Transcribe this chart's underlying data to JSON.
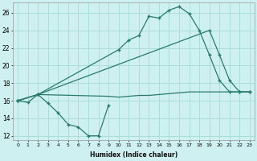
{
  "background_color": "#cff0f0",
  "grid_color": "#aadddd",
  "line_color": "#2a7a6a",
  "xlabel": "Humidex (Indice chaleur)",
  "xlim": [
    -0.5,
    23.5
  ],
  "ylim": [
    11.5,
    27.2
  ],
  "yticks": [
    12,
    14,
    16,
    18,
    20,
    22,
    24,
    26
  ],
  "xticks": [
    0,
    1,
    2,
    3,
    4,
    5,
    6,
    7,
    8,
    9,
    10,
    11,
    12,
    13,
    14,
    15,
    16,
    17,
    18,
    19,
    20,
    21,
    22,
    23
  ],
  "line_zigzag": {
    "x": [
      0,
      1,
      2,
      3,
      4,
      5,
      6,
      7,
      8,
      9
    ],
    "y": [
      16.0,
      15.8,
      16.7,
      15.7,
      14.6,
      13.3,
      13.0,
      12.0,
      12.0,
      15.5
    ]
  },
  "line_top": {
    "x": [
      0,
      2,
      10,
      11,
      12,
      13,
      14,
      15,
      16,
      17,
      18,
      19,
      20,
      21,
      22,
      23
    ],
    "y": [
      16.0,
      16.7,
      21.8,
      22.9,
      23.4,
      25.6,
      25.4,
      26.3,
      26.7,
      25.9,
      24.0,
      21.2,
      18.3,
      17.0,
      17.0,
      17.0
    ]
  },
  "line_mid": {
    "x": [
      0,
      2,
      19,
      20,
      21,
      22,
      23
    ],
    "y": [
      16.0,
      16.7,
      24.0,
      21.2,
      18.3,
      17.0,
      17.0
    ]
  },
  "line_flat": {
    "x": [
      0,
      2,
      9,
      10,
      11,
      12,
      13,
      14,
      15,
      16,
      17,
      18,
      19,
      20,
      21,
      22,
      23
    ],
    "y": [
      16.0,
      16.7,
      16.5,
      16.4,
      16.5,
      16.6,
      16.6,
      16.7,
      16.8,
      16.9,
      17.0,
      17.0,
      17.0,
      17.0,
      17.0,
      17.0,
      17.0
    ]
  }
}
